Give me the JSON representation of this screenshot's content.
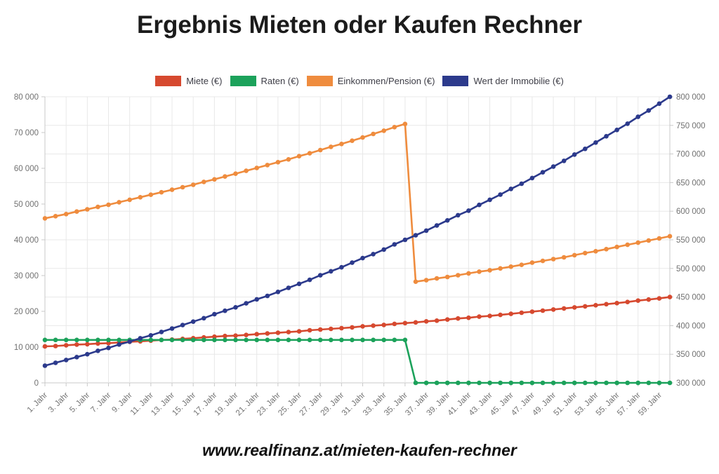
{
  "title": "Ergebnis Mieten oder Kaufen Rechner",
  "footer": "www.realfinanz.at/mieten-kaufen-rechner",
  "colors": {
    "miete": "#d6492f",
    "raten": "#1ca25b",
    "einkommen": "#ef8c3e",
    "wert": "#2c3a8c",
    "grid": "#e8e8e8",
    "axis_line": "#c9c9c9",
    "tick_label": "#717171"
  },
  "chart_data": {
    "type": "line",
    "title": "Ergebnis Mieten oder Kaufen Rechner",
    "grid": true,
    "legend_position": "top",
    "markers": "circle",
    "x_years_start": 1,
    "x_years_end": 60,
    "x_tick_years": [
      1,
      3,
      5,
      7,
      9,
      11,
      13,
      15,
      17,
      19,
      21,
      23,
      25,
      27,
      29,
      31,
      33,
      35,
      37,
      39,
      41,
      43,
      45,
      47,
      49,
      51,
      53,
      55,
      57,
      59
    ],
    "x_tick_labels": [
      "1. Jahr",
      "3. Jahr",
      "5. Jahr",
      "7. Jahr",
      "9. Jahr",
      "11. Jahr",
      "13. Jahr",
      "15. Jahr",
      "17. Jahr",
      "19. Jahr",
      "21. Jahr",
      "23. Jahr",
      "25. Jahr",
      "27. Jahr",
      "29. Jahr",
      "31. Jahr",
      "33. Jahr",
      "35. Jahr",
      "37. Jahr",
      "39. Jahr",
      "41. Jahr",
      "43. Jahr",
      "45. Jahr",
      "47. Jahr",
      "49. Jahr",
      "51. Jahr",
      "53. Jahr",
      "55. Jahr",
      "57. Jahr",
      "59. Jahr"
    ],
    "axes": {
      "left": {
        "min": 0,
        "max": 80000,
        "tick_step": 10000,
        "tick_values": [
          80000,
          70000,
          60000,
          50000,
          40000,
          30000,
          20000,
          10000,
          0
        ],
        "tick_labels": [
          "80 000",
          "70 000",
          "60 000",
          "50 000",
          "40 000",
          "30 000",
          "20 000",
          "10 000",
          "0"
        ]
      },
      "right": {
        "min": 300000,
        "max": 800000,
        "tick_step": 50000,
        "tick_values": [
          800000,
          750000,
          700000,
          650000,
          600000,
          550000,
          500000,
          450000,
          400000,
          350000,
          300000
        ],
        "tick_labels": [
          "800 000",
          "750 000",
          "700 000",
          "650 000",
          "600 000",
          "550 000",
          "500 000",
          "450 000",
          "400 000",
          "350 000",
          "300 000"
        ]
      }
    },
    "series": [
      {
        "name": "Miete (€)",
        "slug": "miete",
        "color": "#d6492f",
        "axis": "left",
        "values": [
          10200,
          10300,
          10500,
          10700,
          10800,
          11000,
          11100,
          11300,
          11500,
          11600,
          11800,
          12000,
          12100,
          12300,
          12500,
          12700,
          12900,
          13100,
          13200,
          13400,
          13600,
          13800,
          14000,
          14200,
          14400,
          14700,
          14900,
          15100,
          15300,
          15500,
          15800,
          16000,
          16200,
          16500,
          16700,
          16900,
          17200,
          17400,
          17700,
          18000,
          18200,
          18500,
          18700,
          19000,
          19300,
          19600,
          19900,
          20200,
          20500,
          20800,
          21100,
          21400,
          21700,
          22000,
          22300,
          22600,
          23000,
          23300,
          23600,
          24000
        ]
      },
      {
        "name": "Raten (€)",
        "slug": "raten",
        "color": "#1ca25b",
        "axis": "left",
        "values": [
          12000,
          12000,
          12000,
          12000,
          12000,
          12000,
          12000,
          12000,
          12000,
          12000,
          12000,
          12000,
          12000,
          12000,
          12000,
          12000,
          12000,
          12000,
          12000,
          12000,
          12000,
          12000,
          12000,
          12000,
          12000,
          12000,
          12000,
          12000,
          12000,
          12000,
          12000,
          12000,
          12000,
          12000,
          12000,
          0,
          0,
          0,
          0,
          0,
          0,
          0,
          0,
          0,
          0,
          0,
          0,
          0,
          0,
          0,
          0,
          0,
          0,
          0,
          0,
          0,
          0,
          0,
          0,
          0
        ]
      },
      {
        "name": "Einkommen/Pension (€)",
        "slug": "einkommen-pension",
        "color": "#ef8c3e",
        "axis": "left",
        "values": [
          46000,
          46600,
          47200,
          47900,
          48500,
          49200,
          49800,
          50500,
          51200,
          51900,
          52600,
          53300,
          54000,
          54700,
          55400,
          56200,
          56900,
          57700,
          58500,
          59300,
          60100,
          60900,
          61700,
          62500,
          63400,
          64200,
          65100,
          66000,
          66800,
          67700,
          68600,
          69600,
          70500,
          71500,
          72400,
          28300,
          28700,
          29200,
          29600,
          30100,
          30600,
          31100,
          31500,
          32000,
          32500,
          33000,
          33600,
          34100,
          34600,
          35100,
          35700,
          36300,
          36800,
          37400,
          38000,
          38600,
          39200,
          39800,
          40400,
          41000
        ]
      },
      {
        "name": "Wert der Immobilie (€)",
        "slug": "wert-der-immobilie",
        "color": "#2c3a8c",
        "axis": "right",
        "values": [
          330000,
          335000,
          340000,
          345000,
          350000,
          356000,
          361000,
          367000,
          372000,
          378000,
          383000,
          389000,
          395000,
          401000,
          407000,
          413000,
          420000,
          426000,
          432000,
          439000,
          446000,
          452000,
          459000,
          466000,
          473000,
          480000,
          488000,
          495000,
          502000,
          510000,
          518000,
          525000,
          533000,
          542000,
          550000,
          558000,
          566000,
          575000,
          584000,
          593000,
          601000,
          611000,
          620000,
          629000,
          639000,
          648000,
          658000,
          668000,
          678000,
          688000,
          699000,
          709000,
          720000,
          731000,
          742000,
          753000,
          765000,
          776000,
          788000,
          800000
        ]
      }
    ]
  }
}
